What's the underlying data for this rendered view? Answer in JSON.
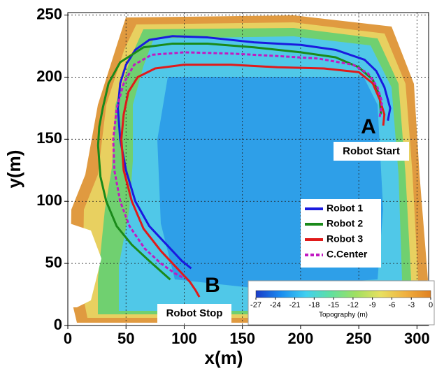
{
  "chart_data": {
    "type": "line",
    "xlabel": "x(m)",
    "ylabel": "y(m)",
    "xlim": [
      0,
      310
    ],
    "ylim": [
      0,
      252
    ],
    "xticks": [
      0,
      50,
      100,
      150,
      200,
      250,
      300
    ],
    "yticks": [
      0,
      50,
      100,
      150,
      200,
      250
    ],
    "grid": true,
    "legend": "center right",
    "series": [
      {
        "name": "Robot 1",
        "color": "#1a1adf",
        "style": "solid",
        "x": [
          275,
          277,
          272,
          265,
          255,
          230,
          200,
          160,
          120,
          90,
          70,
          58,
          50,
          45,
          43,
          45,
          50,
          58,
          70,
          85,
          98,
          106
        ],
        "y": [
          165,
          175,
          192,
          205,
          214,
          222,
          226,
          228,
          232,
          233,
          230,
          222,
          210,
          195,
          175,
          150,
          125,
          100,
          80,
          65,
          52,
          46
        ]
      },
      {
        "name": "Robot 2",
        "color": "#1a8a1a",
        "style": "solid",
        "x": [
          269,
          268,
          262,
          250,
          230,
          200,
          160,
          120,
          90,
          65,
          45,
          35,
          30,
          27,
          26,
          28,
          33,
          42,
          55,
          70,
          82,
          88
        ],
        "y": [
          170,
          185,
          198,
          208,
          216,
          220,
          224,
          227,
          227,
          224,
          212,
          195,
          175,
          160,
          145,
          120,
          100,
          80,
          65,
          52,
          42,
          37
        ]
      },
      {
        "name": "Robot 3",
        "color": "#e01a1a",
        "style": "solid",
        "x": [
          271,
          272,
          268,
          262,
          250,
          220,
          180,
          140,
          100,
          75,
          60,
          52,
          48,
          46,
          48,
          55,
          65,
          80,
          95,
          105,
          110,
          113
        ],
        "y": [
          161,
          170,
          182,
          195,
          204,
          207,
          208,
          210,
          210,
          207,
          200,
          188,
          170,
          150,
          125,
          100,
          78,
          60,
          45,
          35,
          28,
          23
        ]
      },
      {
        "name": "C.Center",
        "color": "#c21ac2",
        "style": "dashed",
        "x": [
          268,
          270,
          266,
          258,
          245,
          215,
          180,
          140,
          100,
          72,
          57,
          48,
          42,
          39,
          40,
          45,
          53,
          66,
          80,
          92,
          100
        ],
        "y": [
          168,
          180,
          192,
          203,
          210,
          215,
          217,
          219,
          220,
          218,
          210,
          195,
          175,
          150,
          125,
          100,
          80,
          62,
          50,
          42,
          38
        ]
      }
    ],
    "annotations": [
      "A",
      "Robot Start",
      "B",
      "Robot Stop"
    ],
    "colorbar": {
      "label": "Topography (m)",
      "lim": [
        -27,
        0
      ],
      "ticks": [
        -27,
        -24,
        -21,
        -18,
        -15,
        -12,
        -9,
        -6,
        -3,
        0
      ],
      "colors": [
        "#1a3cc8",
        "#1a8cf0",
        "#40d0f0",
        "#60e0a0",
        "#a0e060",
        "#e8e060",
        "#f0b040",
        "#e08020"
      ]
    }
  }
}
